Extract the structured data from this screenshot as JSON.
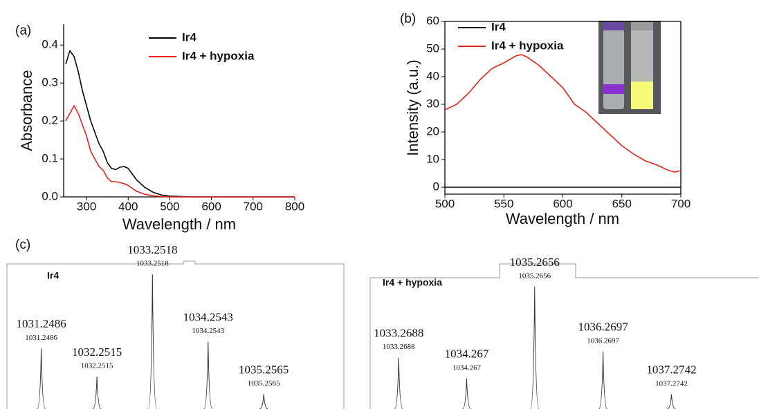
{
  "chart_data": [
    {
      "type": "line",
      "panel_label": "(a)",
      "x_label": "Wavelength / nm",
      "y_label": "Absorbance",
      "x": [
        250,
        260,
        270,
        280,
        290,
        300,
        310,
        320,
        330,
        340,
        350,
        360,
        370,
        380,
        390,
        400,
        410,
        420,
        440,
        460,
        480,
        500,
        550,
        600,
        650,
        700,
        750,
        800
      ],
      "series": [
        {
          "name": "Ir4",
          "color": "#000000",
          "values": [
            0.35,
            0.385,
            0.37,
            0.33,
            0.28,
            0.24,
            0.2,
            0.17,
            0.14,
            0.12,
            0.09,
            0.075,
            0.072,
            0.078,
            0.08,
            0.075,
            0.06,
            0.045,
            0.025,
            0.012,
            0.005,
            0.002,
            0,
            0,
            0,
            0,
            0,
            0
          ]
        },
        {
          "name": "Ir4 + hypoxia",
          "color": "#e8231b",
          "values": [
            0.2,
            0.22,
            0.24,
            0.22,
            0.19,
            0.16,
            0.12,
            0.1,
            0.08,
            0.07,
            0.05,
            0.04,
            0.04,
            0.038,
            0.035,
            0.03,
            0.022,
            0.015,
            0.007,
            0.003,
            0.001,
            0,
            0,
            0,
            0,
            0,
            0,
            0
          ]
        }
      ],
      "xlim": [
        245,
        800
      ],
      "xticks": [
        300,
        400,
        500,
        600,
        700,
        800
      ],
      "ylim": [
        0,
        0.455
      ],
      "yticks": [
        {
          "value": 0,
          "label": "0.0"
        },
        0.1,
        0.2,
        0.3,
        0.4
      ],
      "frame": false
    },
    {
      "type": "line",
      "panel_label": "(b)",
      "x_label": "Wavelength / nm",
      "y_label": "Intensity (a.u.)",
      "x": [
        500,
        510,
        520,
        530,
        540,
        550,
        560,
        565,
        570,
        580,
        590,
        600,
        610,
        620,
        630,
        640,
        650,
        660,
        670,
        680,
        690,
        695,
        700
      ],
      "series": [
        {
          "name": "Ir4",
          "color": "#000000",
          "values": [
            0,
            0,
            0,
            0,
            0,
            0,
            0,
            0,
            0,
            0,
            0,
            0,
            0,
            0,
            0,
            0,
            0,
            0,
            0,
            0,
            0,
            0,
            0
          ]
        },
        {
          "name": "Ir4 + hypoxia",
          "color": "#e8231b",
          "values": [
            28,
            30,
            34,
            39,
            43,
            45,
            47.5,
            48,
            47,
            44,
            40,
            36,
            30,
            27,
            23,
            19,
            15,
            12,
            9.5,
            8,
            6,
            5.5,
            6
          ]
        }
      ],
      "xlim": [
        500,
        700
      ],
      "xticks": [
        500,
        550,
        600,
        650,
        700
      ],
      "ylim": [
        -2.5,
        60
      ],
      "yticks": [
        0,
        10,
        20,
        30,
        40,
        50,
        60
      ],
      "frame": true
    },
    {
      "type": "stem",
      "panel_label": "(c)",
      "title": "Ir4",
      "x": [
        1031.2486,
        1032.2515,
        1033.2518,
        1034.2543,
        1035.2565
      ],
      "values": [
        45,
        24,
        100,
        50,
        11
      ],
      "xlim": [
        1030.63,
        1036.7
      ]
    },
    {
      "type": "stem",
      "title": "Ir4 + hypoxia",
      "x": [
        1033.2688,
        1034.267,
        1035.2656,
        1036.2697,
        1037.2742
      ],
      "values": [
        42,
        25,
        100,
        47,
        12
      ],
      "xlim": [
        1032.85,
        1038.56
      ]
    }
  ]
}
